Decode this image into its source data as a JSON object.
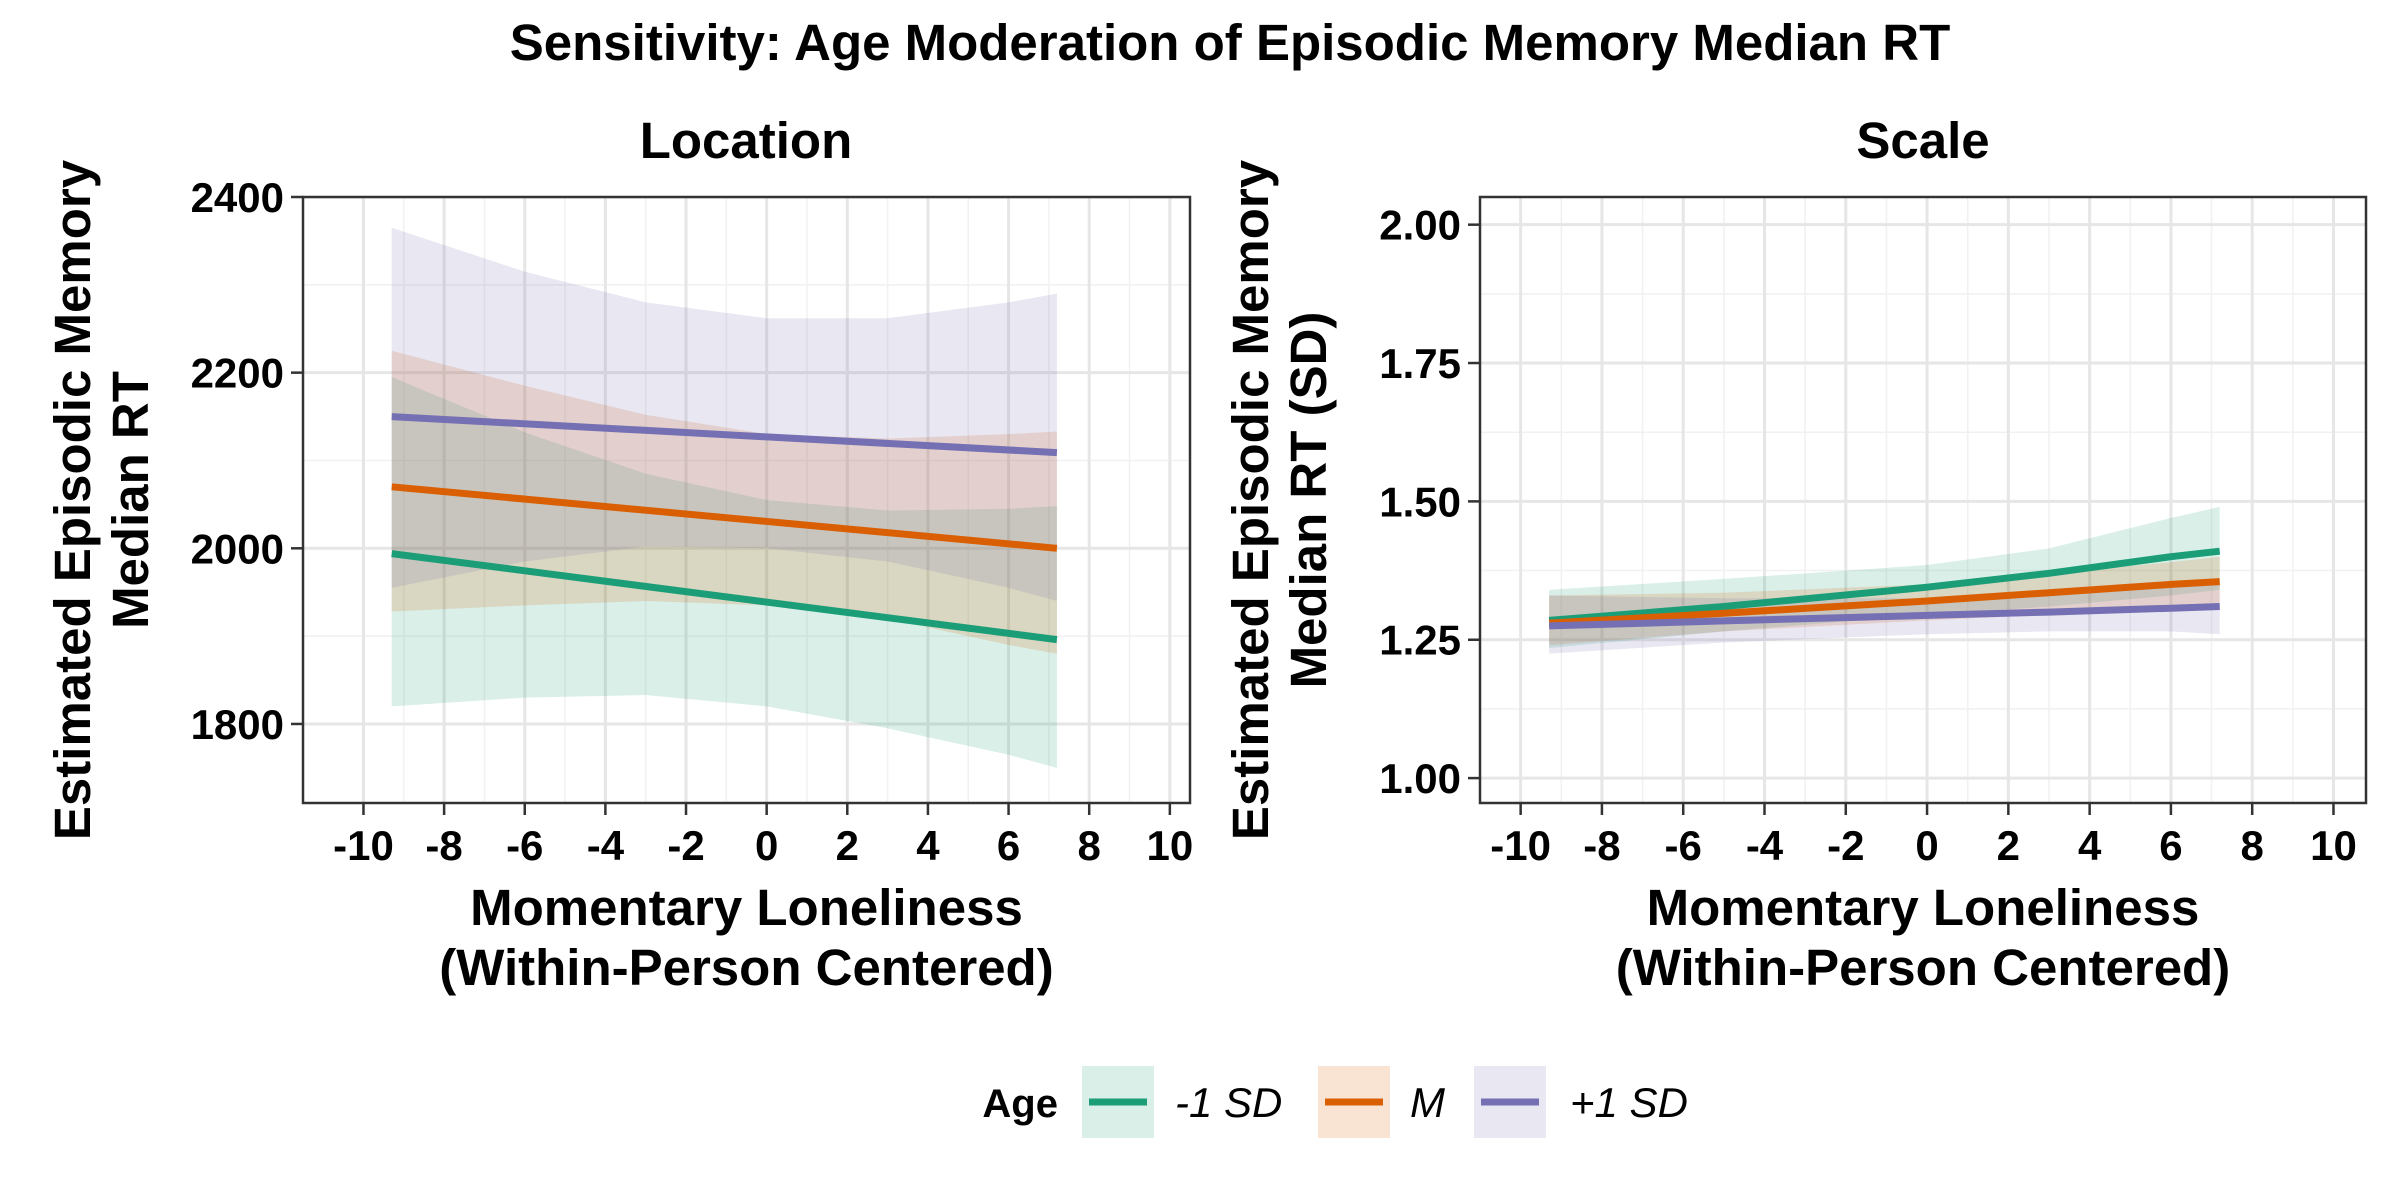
{
  "figure": {
    "title": "Sensitivity: Age Moderation of Episodic Memory Median RT",
    "legend": {
      "title": "Age",
      "placement": "bottom",
      "items": [
        {
          "label": "-1 SD",
          "color": "#1B9E77"
        },
        {
          "label": "M",
          "color": "#D95F02"
        },
        {
          "label": "+1 SD",
          "color": "#7570B3"
        }
      ]
    }
  },
  "chart_data": [
    {
      "type": "line",
      "title": "Location",
      "xlabel": [
        "Momentary Loneliness",
        "(Within-Person Centered)"
      ],
      "ylabel": [
        "Estimated Episodic Memory",
        "Median RT"
      ],
      "xlim": [
        -11.5,
        10.5
      ],
      "ylim": [
        1710,
        2400
      ],
      "xticks": [
        -10,
        -8,
        -6,
        -4,
        -2,
        0,
        2,
        4,
        6,
        8,
        10
      ],
      "yticks": [
        1800,
        2000,
        2200,
        2400
      ],
      "ytick_labels": [
        "1800",
        "2000",
        "2200",
        "2400"
      ],
      "grid": true,
      "series": [
        {
          "name": "-1 SD",
          "color": "#1B9E77",
          "x": [
            -9.3,
            7.2
          ],
          "y": [
            1994,
            1896
          ],
          "band": {
            "x": [
              -9.3,
              -6,
              -3,
              0,
              3,
              6,
              7.2
            ],
            "lower": [
              1820,
              1830,
              1833,
              1820,
              1795,
              1765,
              1750
            ],
            "upper": [
              2195,
              2132,
              2085,
              2055,
              2043,
              2045,
              2048
            ]
          }
        },
        {
          "name": "M",
          "color": "#D95F02",
          "x": [
            -9.3,
            7.2
          ],
          "y": [
            2070,
            2000
          ],
          "band": {
            "x": [
              -9.3,
              -6,
              -3,
              0,
              3,
              6,
              7.2
            ],
            "lower": [
              1928,
              1935,
              1940,
              1935,
              1920,
              1890,
              1880
            ],
            "upper": [
              2225,
              2185,
              2152,
              2130,
              2125,
              2130,
              2133
            ]
          }
        },
        {
          "name": "+1 SD",
          "color": "#7570B3",
          "x": [
            -9.3,
            7.2
          ],
          "y": [
            2150,
            2109
          ],
          "band": {
            "x": [
              -9.3,
              -6,
              -3,
              0,
              3,
              6,
              7.2
            ],
            "lower": [
              1955,
              1985,
              2002,
              2000,
              1985,
              1955,
              1940
            ],
            "upper": [
              2365,
              2315,
              2280,
              2262,
              2262,
              2280,
              2290
            ]
          }
        }
      ]
    },
    {
      "type": "line",
      "title": "Scale",
      "xlabel": [
        "Momentary Loneliness",
        "(Within-Person Centered)"
      ],
      "ylabel": [
        "Estimated Episodic Memory",
        "Median RT (SD)"
      ],
      "xlim": [
        -11.0,
        10.8
      ],
      "ylim": [
        0.955,
        2.05
      ],
      "xticks": [
        -10,
        -8,
        -6,
        -4,
        -2,
        0,
        2,
        4,
        6,
        8,
        10
      ],
      "yticks": [
        1.0,
        1.25,
        1.5,
        1.75,
        2.0
      ],
      "ytick_labels": [
        "1.00",
        "1.25",
        "1.50",
        "1.75",
        "2.00"
      ],
      "grid": true,
      "series": [
        {
          "name": "-1 SD",
          "color": "#1B9E77",
          "x": [
            -9.3,
            -5,
            0,
            3,
            6,
            7.2
          ],
          "y": [
            1.285,
            1.31,
            1.345,
            1.37,
            1.4,
            1.41
          ],
          "band": {
            "x": [
              -9.3,
              -5,
              0,
              3,
              6,
              7.2
            ],
            "lower": [
              1.235,
              1.265,
              1.295,
              1.31,
              1.33,
              1.34
            ],
            "upper": [
              1.34,
              1.36,
              1.385,
              1.415,
              1.47,
              1.49
            ]
          }
        },
        {
          "name": "M",
          "color": "#D95F02",
          "x": [
            -9.3,
            -5,
            0,
            3,
            6,
            7.2
          ],
          "y": [
            1.28,
            1.298,
            1.32,
            1.335,
            1.35,
            1.355
          ],
          "band": {
            "x": [
              -9.3,
              -5,
              0,
              3,
              6,
              7.2
            ],
            "lower": [
              1.24,
              1.265,
              1.285,
              1.295,
              1.305,
              1.31
            ],
            "upper": [
              1.33,
              1.335,
              1.35,
              1.37,
              1.39,
              1.4
            ]
          }
        },
        {
          "name": "+1 SD",
          "color": "#7570B3",
          "x": [
            -9.3,
            -5,
            0,
            3,
            6,
            7.2
          ],
          "y": [
            1.275,
            1.284,
            1.294,
            1.3,
            1.307,
            1.31
          ],
          "band": {
            "x": [
              -9.3,
              -5,
              0,
              3,
              6,
              7.2
            ],
            "lower": [
              1.225,
              1.245,
              1.26,
              1.265,
              1.265,
              1.26
            ],
            "upper": [
              1.33,
              1.325,
              1.325,
              1.335,
              1.35,
              1.36
            ]
          }
        }
      ]
    }
  ]
}
